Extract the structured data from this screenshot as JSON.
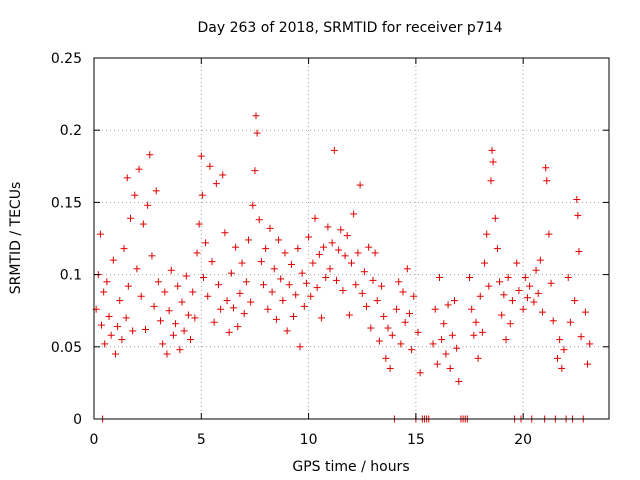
{
  "chart_data": {
    "type": "scatter",
    "title": "Day 263 of 2018, SRMTID for receiver p714",
    "xlabel": "GPS time / hours",
    "ylabel": "SRMTID / TECUs",
    "xlim": [
      0,
      24
    ],
    "ylim": [
      0,
      0.25
    ],
    "x_ticks": [
      0,
      5,
      10,
      15,
      20
    ],
    "x_tick_labels": [
      "0",
      "5",
      "10",
      "15",
      "20"
    ],
    "y_ticks": [
      0,
      0.05,
      0.1,
      0.15,
      0.2,
      0.25
    ],
    "y_tick_labels": [
      "0",
      "0.05",
      "0.1",
      "0.15",
      "0.2",
      "0.25"
    ],
    "grid": true,
    "marker": "+",
    "color": "#e00000",
    "series": [
      {
        "name": "SRMTID",
        "points": [
          [
            0.1,
            0.076
          ],
          [
            0.2,
            0.1
          ],
          [
            0.3,
            0.128
          ],
          [
            0.35,
            0.065
          ],
          [
            0.4,
            0.0
          ],
          [
            0.45,
            0.088
          ],
          [
            0.5,
            0.052
          ],
          [
            0.6,
            0.095
          ],
          [
            0.7,
            0.071
          ],
          [
            0.8,
            0.058
          ],
          [
            0.9,
            0.11
          ],
          [
            1.0,
            0.045
          ],
          [
            1.1,
            0.064
          ],
          [
            1.2,
            0.082
          ],
          [
            1.3,
            0.055
          ],
          [
            1.4,
            0.118
          ],
          [
            1.5,
            0.07
          ],
          [
            1.55,
            0.167
          ],
          [
            1.6,
            0.092
          ],
          [
            1.7,
            0.139
          ],
          [
            1.8,
            0.061
          ],
          [
            1.9,
            0.155
          ],
          [
            2.0,
            0.104
          ],
          [
            2.1,
            0.173
          ],
          [
            2.2,
            0.085
          ],
          [
            2.3,
            0.135
          ],
          [
            2.4,
            0.062
          ],
          [
            2.5,
            0.148
          ],
          [
            2.6,
            0.183
          ],
          [
            2.7,
            0.113
          ],
          [
            2.8,
            0.078
          ],
          [
            2.9,
            0.158
          ],
          [
            3.0,
            0.095
          ],
          [
            3.1,
            0.068
          ],
          [
            3.2,
            0.052
          ],
          [
            3.3,
            0.088
          ],
          [
            3.4,
            0.045
          ],
          [
            3.5,
            0.075
          ],
          [
            3.6,
            0.103
          ],
          [
            3.7,
            0.058
          ],
          [
            3.8,
            0.066
          ],
          [
            3.9,
            0.092
          ],
          [
            4.0,
            0.048
          ],
          [
            4.1,
            0.081
          ],
          [
            4.2,
            0.061
          ],
          [
            4.3,
            0.099
          ],
          [
            4.4,
            0.072
          ],
          [
            4.5,
            0.055
          ],
          [
            4.6,
            0.088
          ],
          [
            4.7,
            0.07
          ],
          [
            4.8,
            0.115
          ],
          [
            4.9,
            0.135
          ],
          [
            5.0,
            0.182
          ],
          [
            5.05,
            0.155
          ],
          [
            5.1,
            0.098
          ],
          [
            5.2,
            0.122
          ],
          [
            5.3,
            0.085
          ],
          [
            5.4,
            0.175
          ],
          [
            5.5,
            0.109
          ],
          [
            5.6,
            0.067
          ],
          [
            5.7,
            0.163
          ],
          [
            5.8,
            0.093
          ],
          [
            5.9,
            0.076
          ],
          [
            6.0,
            0.169
          ],
          [
            6.1,
            0.129
          ],
          [
            6.2,
            0.082
          ],
          [
            6.3,
            0.06
          ],
          [
            6.4,
            0.101
          ],
          [
            6.5,
            0.077
          ],
          [
            6.6,
            0.119
          ],
          [
            6.7,
            0.064
          ],
          [
            6.8,
            0.087
          ],
          [
            6.9,
            0.108
          ],
          [
            7.0,
            0.073
          ],
          [
            7.1,
            0.095
          ],
          [
            7.2,
            0.124
          ],
          [
            7.3,
            0.081
          ],
          [
            7.4,
            0.148
          ],
          [
            7.5,
            0.172
          ],
          [
            7.55,
            0.21
          ],
          [
            7.6,
            0.198
          ],
          [
            7.7,
            0.138
          ],
          [
            7.8,
            0.109
          ],
          [
            7.9,
            0.093
          ],
          [
            8.0,
            0.118
          ],
          [
            8.1,
            0.076
          ],
          [
            8.2,
            0.132
          ],
          [
            8.3,
            0.088
          ],
          [
            8.4,
            0.104
          ],
          [
            8.5,
            0.069
          ],
          [
            8.6,
            0.124
          ],
          [
            8.7,
            0.097
          ],
          [
            8.8,
            0.082
          ],
          [
            8.9,
            0.115
          ],
          [
            9.0,
            0.061
          ],
          [
            9.1,
            0.093
          ],
          [
            9.2,
            0.107
          ],
          [
            9.3,
            0.071
          ],
          [
            9.4,
            0.086
          ],
          [
            9.5,
            0.118
          ],
          [
            9.6,
            0.05
          ],
          [
            9.7,
            0.101
          ],
          [
            9.8,
            0.078
          ],
          [
            9.9,
            0.094
          ],
          [
            10.0,
            0.126
          ],
          [
            10.1,
            0.085
          ],
          [
            10.2,
            0.108
          ],
          [
            10.3,
            0.139
          ],
          [
            10.4,
            0.091
          ],
          [
            10.5,
            0.114
          ],
          [
            10.6,
            0.07
          ],
          [
            10.7,
            0.119
          ],
          [
            10.8,
            0.098
          ],
          [
            10.9,
            0.133
          ],
          [
            11.0,
            0.104
          ],
          [
            11.1,
            0.122
          ],
          [
            11.2,
            0.186
          ],
          [
            11.3,
            0.096
          ],
          [
            11.4,
            0.117
          ],
          [
            11.5,
            0.131
          ],
          [
            11.6,
            0.089
          ],
          [
            11.7,
            0.113
          ],
          [
            11.8,
            0.127
          ],
          [
            11.9,
            0.072
          ],
          [
            12.0,
            0.108
          ],
          [
            12.1,
            0.142
          ],
          [
            12.2,
            0.093
          ],
          [
            12.3,
            0.115
          ],
          [
            12.4,
            0.162
          ],
          [
            12.5,
            0.087
          ],
          [
            12.6,
            0.102
          ],
          [
            12.7,
            0.078
          ],
          [
            12.8,
            0.119
          ],
          [
            12.9,
            0.063
          ],
          [
            13.0,
            0.096
          ],
          [
            13.1,
            0.115
          ],
          [
            13.2,
            0.082
          ],
          [
            13.3,
            0.054
          ],
          [
            13.4,
            0.092
          ],
          [
            13.5,
            0.071
          ],
          [
            13.6,
            0.042
          ],
          [
            13.7,
            0.063
          ],
          [
            13.8,
            0.035
          ],
          [
            13.9,
            0.058
          ],
          [
            14.0,
            0.0
          ],
          [
            14.1,
            0.076
          ],
          [
            14.2,
            0.095
          ],
          [
            14.3,
            0.052
          ],
          [
            14.4,
            0.088
          ],
          [
            14.5,
            0.067
          ],
          [
            14.6,
            0.104
          ],
          [
            14.7,
            0.073
          ],
          [
            14.8,
            0.048
          ],
          [
            14.9,
            0.085
          ],
          [
            15.0,
            0.0
          ],
          [
            15.1,
            0.06
          ],
          [
            15.2,
            0.032
          ],
          [
            15.3,
            0.0
          ],
          [
            15.4,
            0.0
          ],
          [
            15.5,
            0.0
          ],
          [
            15.6,
            0.0
          ],
          [
            15.8,
            0.052
          ],
          [
            15.9,
            0.076
          ],
          [
            16.0,
            0.038
          ],
          [
            16.1,
            0.098
          ],
          [
            16.2,
            0.055
          ],
          [
            16.3,
            0.066
          ],
          [
            16.4,
            0.045
          ],
          [
            16.5,
            0.079
          ],
          [
            16.6,
            0.035
          ],
          [
            16.7,
            0.058
          ],
          [
            16.8,
            0.082
          ],
          [
            16.9,
            0.049
          ],
          [
            17.0,
            0.026
          ],
          [
            17.1,
            0.0
          ],
          [
            17.2,
            0.0
          ],
          [
            17.3,
            0.0
          ],
          [
            17.4,
            0.0
          ],
          [
            17.5,
            0.098
          ],
          [
            17.6,
            0.076
          ],
          [
            17.7,
            0.058
          ],
          [
            17.8,
            0.067
          ],
          [
            17.9,
            0.042
          ],
          [
            18.0,
            0.085
          ],
          [
            18.1,
            0.06
          ],
          [
            18.2,
            0.108
          ],
          [
            18.3,
            0.128
          ],
          [
            18.4,
            0.092
          ],
          [
            18.5,
            0.165
          ],
          [
            18.55,
            0.186
          ],
          [
            18.6,
            0.178
          ],
          [
            18.7,
            0.139
          ],
          [
            18.8,
            0.118
          ],
          [
            18.9,
            0.095
          ],
          [
            19.0,
            0.072
          ],
          [
            19.1,
            0.086
          ],
          [
            19.2,
            0.055
          ],
          [
            19.3,
            0.098
          ],
          [
            19.4,
            0.066
          ],
          [
            19.5,
            0.082
          ],
          [
            19.6,
            0.0
          ],
          [
            19.7,
            0.108
          ],
          [
            19.8,
            0.089
          ],
          [
            19.9,
            0.0
          ],
          [
            20.0,
            0.076
          ],
          [
            20.1,
            0.098
          ],
          [
            20.2,
            0.084
          ],
          [
            20.3,
            0.092
          ],
          [
            20.4,
            0.0
          ],
          [
            20.5,
            0.081
          ],
          [
            20.6,
            0.103
          ],
          [
            20.7,
            0.087
          ],
          [
            20.8,
            0.11
          ],
          [
            20.9,
            0.074
          ],
          [
            21.0,
            0.0
          ],
          [
            21.05,
            0.174
          ],
          [
            21.1,
            0.165
          ],
          [
            21.2,
            0.128
          ],
          [
            21.3,
            0.094
          ],
          [
            21.4,
            0.068
          ],
          [
            21.5,
            0.0
          ],
          [
            21.6,
            0.042
          ],
          [
            21.7,
            0.055
          ],
          [
            21.8,
            0.035
          ],
          [
            21.9,
            0.048
          ],
          [
            22.0,
            0.0
          ],
          [
            22.1,
            0.098
          ],
          [
            22.2,
            0.067
          ],
          [
            22.3,
            0.0
          ],
          [
            22.4,
            0.082
          ],
          [
            22.5,
            0.152
          ],
          [
            22.55,
            0.141
          ],
          [
            22.6,
            0.116
          ],
          [
            22.7,
            0.057
          ],
          [
            22.8,
            0.0
          ],
          [
            22.9,
            0.074
          ],
          [
            23.0,
            0.038
          ],
          [
            23.1,
            0.052
          ]
        ]
      }
    ]
  }
}
